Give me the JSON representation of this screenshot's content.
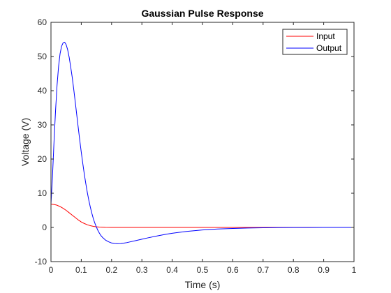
{
  "chart_data": {
    "type": "line",
    "title": "Gaussian Pulse Response",
    "xlabel": "Time (s)",
    "ylabel": "Voltage (V)",
    "xlim": [
      0,
      1
    ],
    "ylim": [
      -10,
      60
    ],
    "xticks": [
      0,
      0.1,
      0.2,
      0.3,
      0.4,
      0.5,
      0.6,
      0.7,
      0.8,
      0.9,
      1
    ],
    "xtick_labels": [
      "0",
      "0.1",
      "0.2",
      "0.3",
      "0.4",
      "0.5",
      "0.6",
      "0.7",
      "0.8",
      "0.9",
      "1"
    ],
    "yticks": [
      -10,
      0,
      10,
      20,
      30,
      40,
      50,
      60
    ],
    "ytick_labels": [
      "-10",
      "0",
      "10",
      "20",
      "30",
      "40",
      "50",
      "60"
    ],
    "grid": false,
    "legend_position": "top-right",
    "series": [
      {
        "name": "Input",
        "color": "#ff0000",
        "x": [
          0,
          0.01,
          0.02,
          0.03,
          0.04,
          0.05,
          0.06,
          0.07,
          0.08,
          0.09,
          0.1,
          0.11,
          0.12,
          0.13,
          0.14,
          0.15,
          0.16,
          0.18,
          0.2,
          0.25,
          0.3,
          0.4,
          0.5,
          0.6,
          0.7,
          0.8,
          0.9,
          1.0
        ],
        "y": [
          6.8,
          6.7,
          6.5,
          6.1,
          5.6,
          5.0,
          4.3,
          3.6,
          2.9,
          2.2,
          1.6,
          1.15,
          0.78,
          0.5,
          0.31,
          0.18,
          0.1,
          0.03,
          0.01,
          0,
          0,
          0,
          0,
          0,
          0,
          0,
          0,
          0
        ]
      },
      {
        "name": "Output",
        "color": "#0000ff",
        "x": [
          0,
          0.005,
          0.01,
          0.015,
          0.02,
          0.025,
          0.03,
          0.035,
          0.04,
          0.045,
          0.05,
          0.055,
          0.06,
          0.065,
          0.07,
          0.075,
          0.08,
          0.085,
          0.09,
          0.095,
          0.1,
          0.105,
          0.11,
          0.115,
          0.12,
          0.125,
          0.13,
          0.135,
          0.14,
          0.145,
          0.15,
          0.155,
          0.16,
          0.165,
          0.17,
          0.18,
          0.19,
          0.2,
          0.21,
          0.22,
          0.23,
          0.24,
          0.25,
          0.26,
          0.28,
          0.3,
          0.32,
          0.35,
          0.38,
          0.4,
          0.45,
          0.5,
          0.55,
          0.6,
          0.65,
          0.7,
          0.75,
          0.8,
          0.85,
          0.9,
          0.95,
          1.0
        ],
        "y": [
          6.8,
          15,
          25,
          34,
          41.5,
          47,
          50.8,
          53,
          54,
          54.2,
          53.5,
          52,
          49.8,
          47,
          44,
          40.5,
          36.8,
          33,
          29.2,
          25.5,
          22,
          18.7,
          15.6,
          12.8,
          10.2,
          7.9,
          5.9,
          4.1,
          2.5,
          1.2,
          0.1,
          -0.9,
          -1.7,
          -2.4,
          -2.9,
          -3.7,
          -4.2,
          -4.55,
          -4.7,
          -4.75,
          -4.72,
          -4.6,
          -4.45,
          -4.25,
          -3.85,
          -3.45,
          -3.05,
          -2.5,
          -2.0,
          -1.7,
          -1.15,
          -0.75,
          -0.47,
          -0.3,
          -0.18,
          -0.1,
          -0.06,
          -0.03,
          -0.02,
          -0.01,
          0,
          0
        ]
      }
    ]
  }
}
